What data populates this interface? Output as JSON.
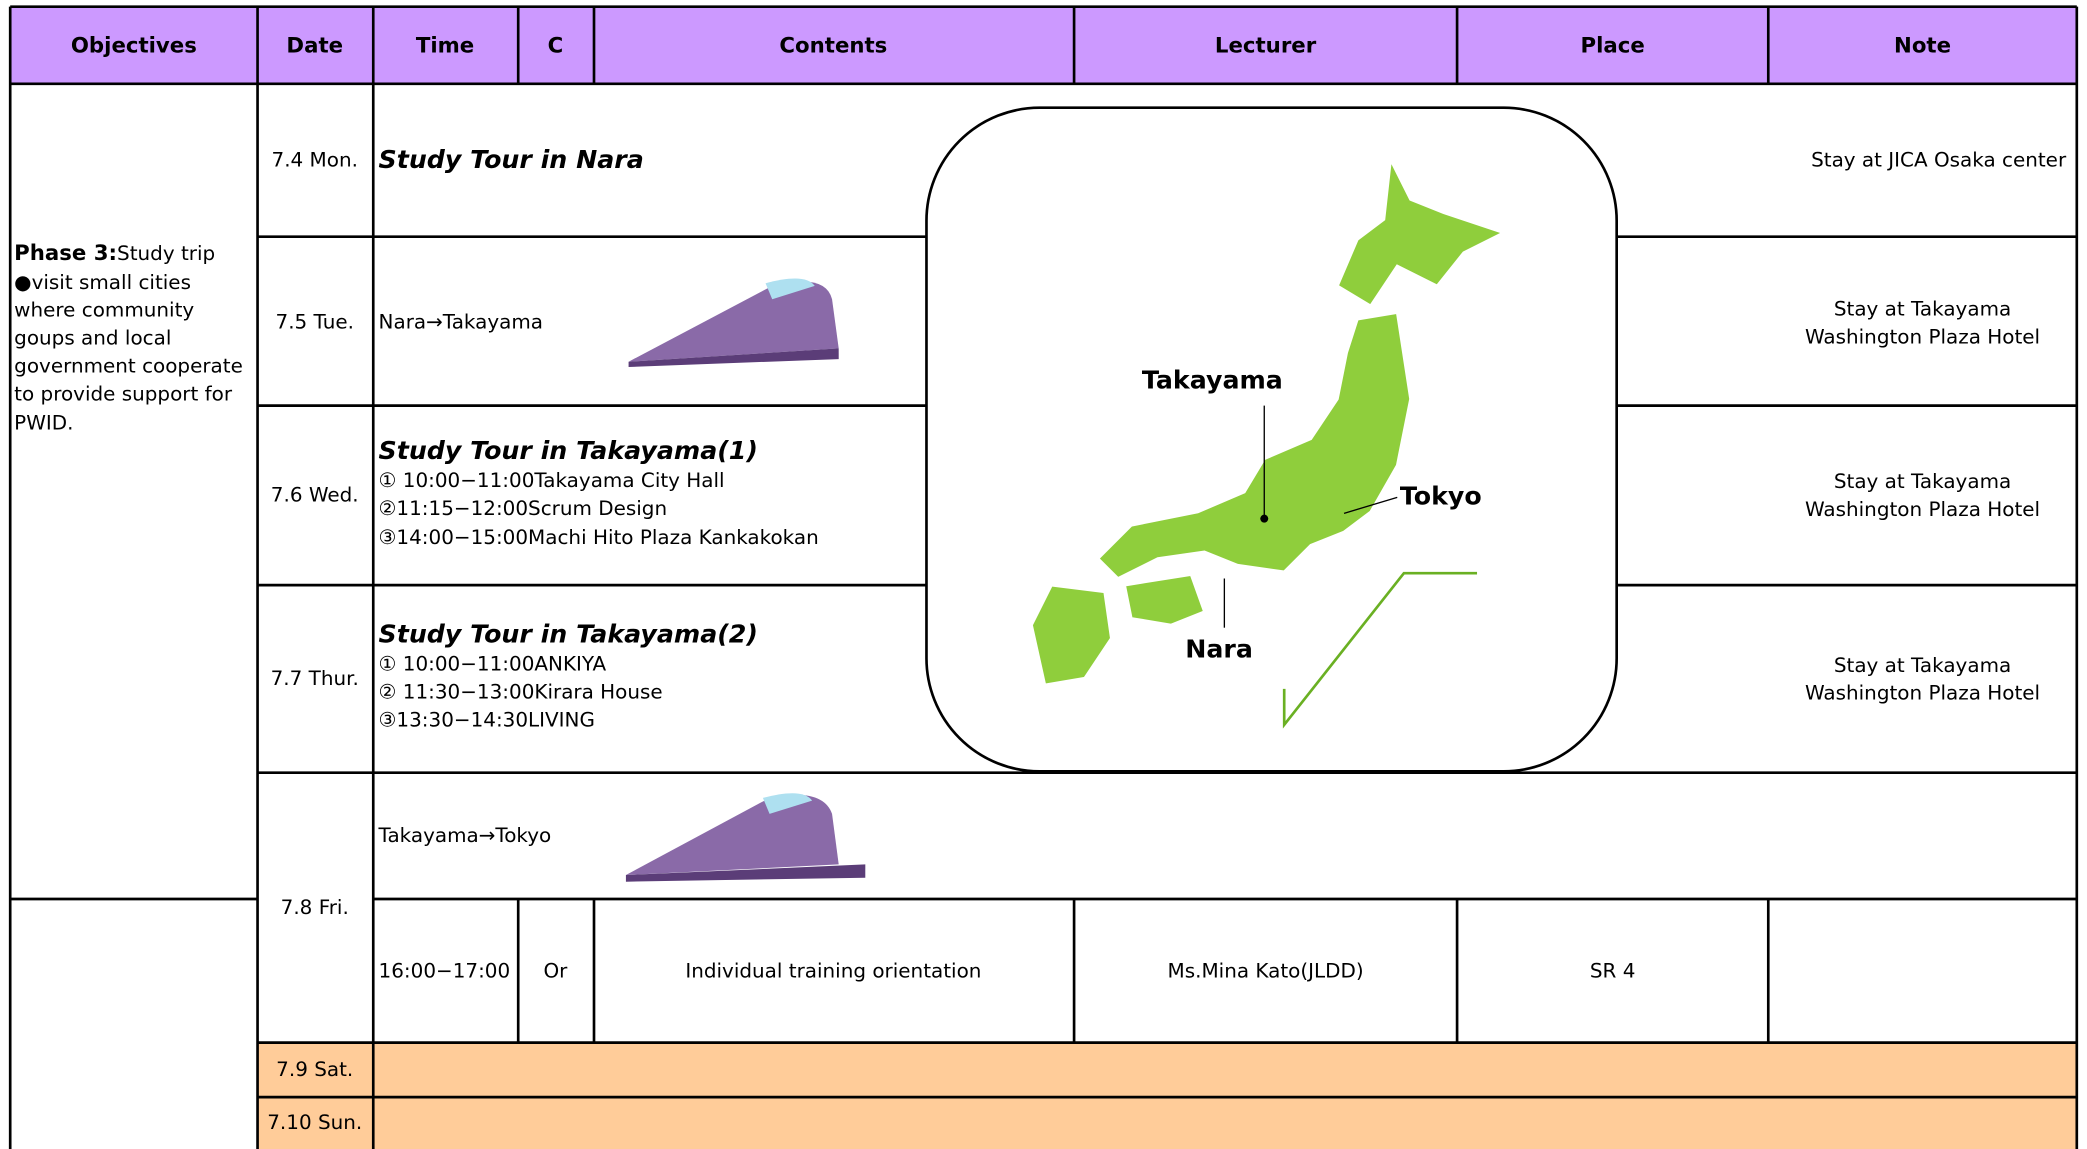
{
  "header": {
    "columns": [
      "Objectives",
      "Date",
      "Time",
      "C",
      "Contents",
      "Lecturer",
      "Place",
      "Note"
    ]
  },
  "objective": {
    "label": "Phase 3:",
    "lines": [
      "Study trip",
      "●visit small cities",
      "where community",
      "goups and local",
      "government cooperate",
      "to provide support for",
      "PWID."
    ]
  },
  "days": [
    {
      "date": "7.4 Mon.",
      "title": "Study Tour in Nara",
      "items": [],
      "note": [
        "Stay at JICA Osaka center"
      ]
    },
    {
      "date": "7.5 Tue.",
      "route": "Nara→Takayama",
      "note": [
        "Stay at Takayama",
        "Washington Plaza Hotel"
      ]
    },
    {
      "date": "7.6 Wed.",
      "title": "Study Tour in Takayama(1)",
      "items": [
        "① 10:00−11:00Takayama City Hall",
        "②11:15−12:00Scrum Design",
        "③14:00−15:00Machi Hito Plaza Kankakokan"
      ],
      "note": [
        "Stay at Takayama",
        "Washington Plaza Hotel"
      ]
    },
    {
      "date": "7.7 Thur.",
      "title": "Study Tour in Takayama(2)",
      "items": [
        "① 10:00−11:00ANKIYA",
        "② 11:30−13:00Kirara House",
        "③13:30−14:30LIVING"
      ],
      "note": [
        "Stay at Takayama",
        "Washington Plaza Hotel"
      ]
    },
    {
      "date": "7.8 Fri.",
      "route": "Takayama→Tokyo",
      "session": {
        "time": "16:00−17:00",
        "c": "Or",
        "contents": "Individual training orientation",
        "lecturer": "Ms.Mina Kato(JLDD)",
        "place": "SR 4"
      }
    },
    {
      "date": "7.9 Sat."
    },
    {
      "date": "7.10 Sun."
    }
  ],
  "map": {
    "labels": [
      "Takayama",
      "Tokyo",
      "Nara"
    ]
  }
}
